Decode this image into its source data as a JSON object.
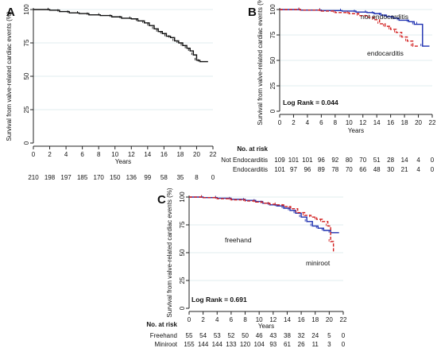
{
  "panels": [
    {
      "id": "A",
      "panel_label": "A",
      "logrank": "",
      "risk_header": "",
      "chart_data": {
        "type": "line",
        "title": "",
        "xlabel": "Years",
        "ylabel": "Survival from valve-related cardiac events (%)",
        "xlim": [
          0,
          22
        ],
        "ylim": [
          0,
          100
        ],
        "xticks": [
          0,
          2,
          4,
          6,
          8,
          10,
          12,
          14,
          16,
          18,
          20,
          22
        ],
        "yticks": [
          0,
          25,
          50,
          75,
          100
        ],
        "grid": "horizontal-light",
        "series": [
          {
            "name": "",
            "color": "#111111",
            "dash": "",
            "x": [
              0,
              2,
              3.2,
              4.4,
              5.6,
              6.8,
              8.2,
              9.6,
              10.8,
              12.0,
              12.8,
              13.6,
              14.2,
              14.8,
              15.3,
              15.8,
              16.3,
              16.8,
              17.3,
              17.8,
              18.3,
              18.8,
              19.2,
              19.6,
              20.0,
              20.4,
              21.4
            ],
            "y": [
              100,
              99.5,
              98.5,
              97.5,
              97,
              96,
              95.5,
              94.5,
              93.5,
              93,
              91.5,
              90,
              88,
              85.5,
              83.5,
              82,
              80,
              79,
              76.5,
              75,
              73,
              71,
              69,
              66,
              62,
              61,
              61
            ]
          }
        ],
        "risk_table": [
          {
            "label": "",
            "counts": [
              "210",
              "198",
              "197",
              "185",
              "170",
              "150",
              "136",
              "99",
              "58",
              "35",
              "8",
              "0"
            ]
          }
        ]
      }
    },
    {
      "id": "B",
      "panel_label": "B",
      "logrank": "Log Rank = 0.044",
      "risk_header": "No. at risk",
      "chart_data": {
        "type": "line",
        "title": "",
        "xlabel": "Years",
        "ylabel": "Survival from valve-related cardiac events (%)",
        "xlim": [
          0,
          22
        ],
        "ylim": [
          0,
          100
        ],
        "xticks": [
          0,
          2,
          4,
          6,
          8,
          10,
          12,
          14,
          16,
          18,
          20,
          22
        ],
        "yticks": [
          0,
          25,
          50,
          75,
          100
        ],
        "grid": "horizontal-light",
        "series": [
          {
            "name": "not endocarditis",
            "color": "#1c2fb0",
            "dash": "",
            "x": [
              0,
              3,
              6,
              9,
              11,
              12.6,
              13.6,
              14.6,
              15.4,
              16.4,
              17.2,
              18.6,
              19.4,
              20.0,
              20.6,
              21.6
            ],
            "y": [
              100,
              99.5,
              99,
              98.5,
              97.5,
              97,
              96,
              94.5,
              93,
              91.5,
              89.5,
              88,
              85.5,
              85.5,
              64,
              64
            ]
          },
          {
            "name": "endocarditis",
            "color": "#d21f1f",
            "dash": "4,2",
            "x": [
              0,
              3,
              6,
              8,
              10,
              11.4,
              12.6,
              13.6,
              14.4,
              15.2,
              16.0,
              16.8,
              17.6,
              18.4,
              19.2,
              20.0
            ],
            "y": [
              100,
              99.5,
              98.5,
              97,
              96,
              94,
              92.5,
              90,
              86,
              83.5,
              80.5,
              77.5,
              73,
              69,
              64,
              63
            ]
          }
        ],
        "series_labels": [
          "not endocarditis",
          "endocarditis"
        ],
        "risk_table": [
          {
            "label": "Not Endocarditis",
            "counts": [
              "109",
              "101",
              "101",
              "96",
              "92",
              "80",
              "70",
              "51",
              "28",
              "14",
              "4",
              "0"
            ]
          },
          {
            "label": "Endocarditis",
            "counts": [
              "101",
              "97",
              "96",
              "89",
              "78",
              "70",
              "66",
              "48",
              "30",
              "21",
              "4",
              "0"
            ]
          }
        ]
      }
    },
    {
      "id": "C",
      "panel_label": "C",
      "logrank": "Log Rank = 0.691",
      "risk_header": "No. at risk",
      "chart_data": {
        "type": "line",
        "title": "",
        "xlabel": "Years",
        "ylabel": "Survival from valve-related cardiac events (%)",
        "xlim": [
          0,
          22
        ],
        "ylim": [
          0,
          100
        ],
        "xticks": [
          0,
          2,
          4,
          6,
          8,
          10,
          12,
          14,
          16,
          18,
          20,
          22
        ],
        "yticks": [
          0,
          25,
          50,
          75,
          100
        ],
        "grid": "horizontal-light",
        "series": [
          {
            "name": "freehand",
            "color": "#1c2fb0",
            "dash": "",
            "x": [
              0,
              2,
              4,
              6,
              8,
              9.5,
              10.5,
              11.5,
              12.5,
              13.5,
              14.4,
              15.2,
              16.0,
              16.8,
              17.6,
              18.4,
              19.2,
              20.2,
              21.4
            ],
            "y": [
              100,
              99.5,
              99,
              98,
              97,
              96,
              94.5,
              93,
              92,
              90,
              88,
              85.5,
              82,
              78,
              74,
              72,
              70,
              68,
              68
            ]
          },
          {
            "name": "miniroot",
            "color": "#d21f1f",
            "dash": "4,2",
            "x": [
              0,
              2,
              4,
              6,
              8,
              9.5,
              10.5,
              11.5,
              12.5,
              13.5,
              14.5,
              15.5,
              16.5,
              17.4,
              18.2,
              19.0,
              19.8,
              20.2,
              20.6
            ],
            "y": [
              100,
              99.5,
              98.5,
              97.5,
              96.5,
              95.5,
              94.5,
              93.5,
              93,
              91.5,
              89.5,
              86,
              83.5,
              82,
              80,
              78,
              74,
              60,
              50
            ]
          }
        ],
        "series_labels": [
          "freehand",
          "miniroot"
        ],
        "risk_table": [
          {
            "label": "Freehand",
            "counts": [
              "55",
              "54",
              "53",
              "52",
              "50",
              "46",
              "43",
              "38",
              "32",
              "24",
              "5",
              "0"
            ]
          },
          {
            "label": "Miniroot",
            "counts": [
              "155",
              "144",
              "144",
              "133",
              "120",
              "104",
              "93",
              "61",
              "26",
              "11",
              "3",
              "0"
            ]
          }
        ]
      }
    }
  ]
}
